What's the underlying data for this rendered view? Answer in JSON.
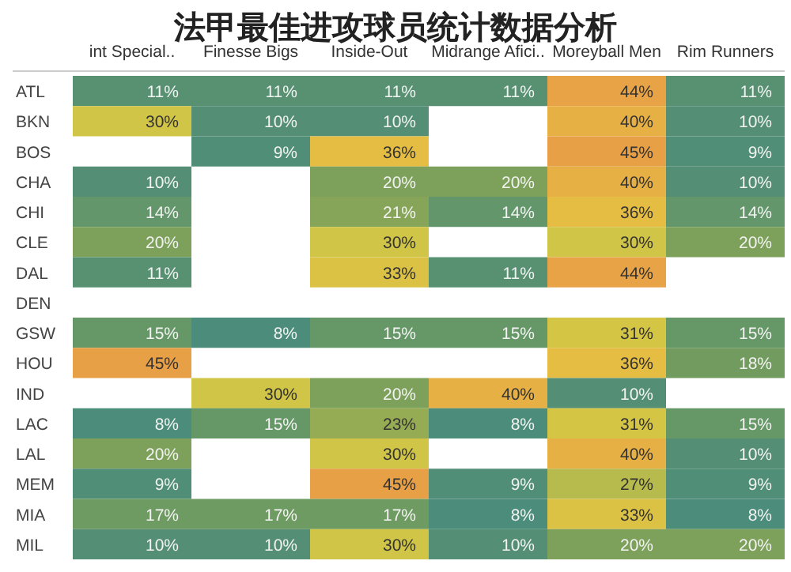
{
  "chart_data": {
    "type": "heatmap",
    "title": "法甲最佳进攻球员统计数据分析",
    "categories": [
      "int Special..",
      "Finesse Bigs",
      "Inside-Out",
      "Midrange Afici..",
      "Moreyball Men",
      "Rim Runners"
    ],
    "y_categories": [
      "ATL",
      "BKN",
      "BOS",
      "CHA",
      "CHI",
      "CLE",
      "DAL",
      "DEN",
      "GSW",
      "HOU",
      "IND",
      "LAC",
      "LAL",
      "MEM",
      "MIA",
      "MIL"
    ],
    "cells": [
      [
        11,
        11,
        11,
        11,
        44,
        11
      ],
      [
        30,
        10,
        10,
        null,
        40,
        10
      ],
      [
        null,
        9,
        36,
        null,
        45,
        9
      ],
      [
        10,
        null,
        20,
        20,
        40,
        10
      ],
      [
        14,
        null,
        21,
        14,
        36,
        14
      ],
      [
        20,
        null,
        30,
        null,
        30,
        20
      ],
      [
        11,
        null,
        33,
        11,
        44,
        null
      ],
      [
        null,
        null,
        null,
        null,
        null,
        null
      ],
      [
        15,
        8,
        15,
        15,
        31,
        15
      ],
      [
        45,
        null,
        null,
        null,
        36,
        18
      ],
      [
        null,
        30,
        20,
        40,
        10,
        null
      ],
      [
        8,
        15,
        23,
        8,
        31,
        15
      ],
      [
        20,
        null,
        30,
        null,
        40,
        10
      ],
      [
        9,
        null,
        45,
        9,
        27,
        9
      ],
      [
        17,
        17,
        17,
        8,
        33,
        8
      ],
      [
        10,
        10,
        30,
        10,
        20,
        20
      ]
    ],
    "cell_labels": [
      [
        "11%",
        "11%",
        "11%",
        "11%",
        "44%",
        "11%"
      ],
      [
        "30%",
        "10%",
        "10%",
        null,
        "40%",
        "10%"
      ],
      [
        null,
        "9%",
        "36%",
        null,
        "45%",
        "9%"
      ],
      [
        "10%",
        null,
        "20%",
        "20%",
        "40%",
        "10%"
      ],
      [
        "14%",
        null,
        "21%",
        "14%",
        "36%",
        "14%"
      ],
      [
        "20%",
        null,
        "30%",
        null,
        "30%",
        "20%"
      ],
      [
        "11%",
        null,
        "33%",
        "11%",
        "44%",
        null
      ],
      [
        null,
        null,
        null,
        null,
        null,
        null
      ],
      [
        "15%",
        "8%",
        "15%",
        "15%",
        "31%",
        "15%"
      ],
      [
        "45%",
        null,
        null,
        null,
        "36%",
        "18%"
      ],
      [
        null,
        "30%",
        "20%",
        "40%",
        "10%",
        null
      ],
      [
        "8%",
        "15%",
        "23%",
        "8%",
        "31%",
        "15%"
      ],
      [
        "20%",
        null,
        "30%",
        null,
        "40%",
        "10%"
      ],
      [
        "9%",
        null,
        "45%",
        "9%",
        "27%",
        "9%"
      ],
      [
        "17%",
        "17%",
        "17%",
        "8%",
        "33%",
        "8%"
      ],
      [
        "10%",
        "10%",
        "30%",
        "10%",
        "20%",
        "20%"
      ]
    ]
  }
}
